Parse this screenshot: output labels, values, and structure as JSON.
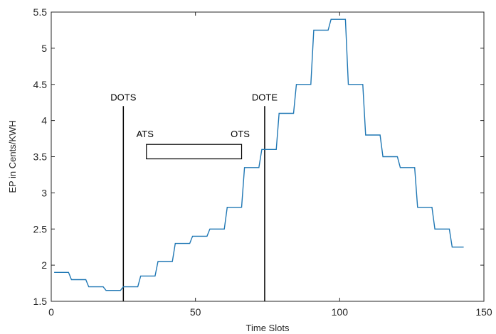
{
  "chart_data": {
    "type": "line",
    "xlabel": "Time Slots",
    "ylabel": "EP in Cents/KWH",
    "xlim": [
      0,
      150
    ],
    "ylim": [
      1.5,
      5.5
    ],
    "xticks": [
      0,
      50,
      100,
      150
    ],
    "xtick_labels": [
      "0",
      "50",
      "100",
      "150"
    ],
    "yticks": [
      1.5,
      2,
      2.5,
      3,
      3.5,
      4,
      4.5,
      5,
      5.5
    ],
    "ytick_labels": [
      "1.5",
      "2",
      "2.5",
      "3",
      "3.5",
      "4",
      "4.5",
      "5",
      "5.5"
    ],
    "grid": false,
    "line_color": "#1f77b4",
    "series": [
      {
        "x": [
          1,
          6,
          7,
          12,
          13,
          18,
          19,
          24,
          25,
          30,
          31,
          36,
          37,
          42,
          43,
          48,
          49,
          54,
          55,
          60,
          61,
          66,
          67,
          72,
          73,
          78,
          79,
          84,
          85,
          90,
          91,
          96,
          97,
          102,
          103,
          108,
          109,
          114,
          115,
          120,
          121,
          126,
          127,
          132,
          133,
          138,
          139,
          143
        ],
        "y": [
          1.9,
          1.9,
          1.8,
          1.8,
          1.7,
          1.7,
          1.65,
          1.65,
          1.7,
          1.7,
          1.85,
          1.85,
          2.05,
          2.05,
          2.3,
          2.3,
          2.4,
          2.4,
          2.5,
          2.5,
          2.8,
          2.8,
          3.35,
          3.35,
          3.6,
          3.6,
          4.1,
          4.1,
          4.5,
          4.5,
          5.25,
          5.25,
          5.4,
          5.4,
          4.5,
          4.5,
          3.8,
          3.8,
          3.5,
          3.5,
          3.35,
          3.35,
          2.8,
          2.8,
          2.5,
          2.5,
          2.25,
          2.25
        ]
      }
    ],
    "vertical_markers": [
      {
        "label": "DOTS",
        "x": 25,
        "y_top": 4.2
      },
      {
        "label": "DOTE",
        "x": 74,
        "y_top": 4.2
      }
    ],
    "interval_box": {
      "start_label": "ATS",
      "end_label": "OTS",
      "x_start": 33,
      "x_end": 66,
      "y_low": 3.47,
      "y_high": 3.67
    }
  }
}
